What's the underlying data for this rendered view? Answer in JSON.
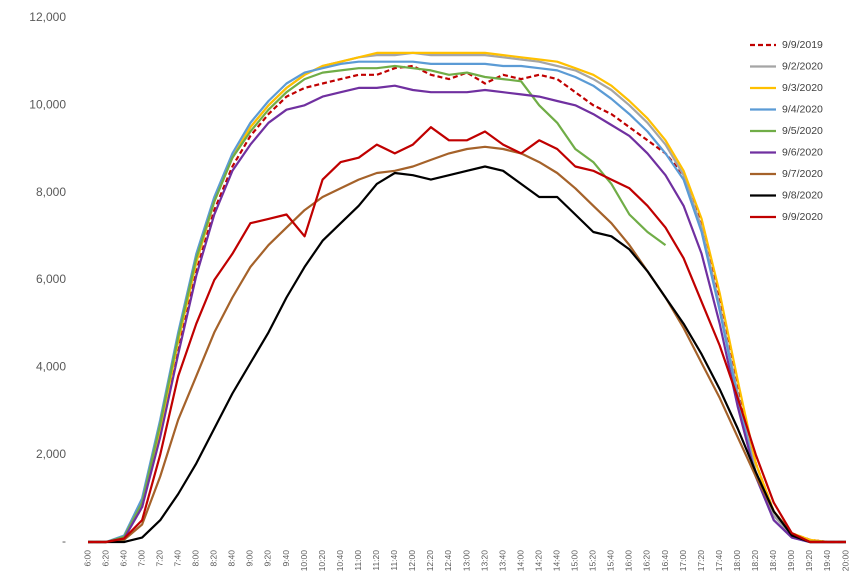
{
  "chart_data": {
    "type": "line",
    "categories": [
      "6:00",
      "6:20",
      "6:40",
      "7:00",
      "7:20",
      "7:40",
      "8:00",
      "8:20",
      "8:40",
      "9:00",
      "9:20",
      "9:40",
      "10:00",
      "10:20",
      "10:40",
      "11:00",
      "11:20",
      "11:40",
      "12:00",
      "12:20",
      "12:40",
      "13:00",
      "13:20",
      "13:40",
      "14:00",
      "14:20",
      "14:40",
      "15:00",
      "15:20",
      "15:40",
      "16:00",
      "16:20",
      "16:40",
      "17:00",
      "17:20",
      "17:40",
      "18:00",
      "18:20",
      "18:40",
      "19:00",
      "19:20",
      "19:40",
      "20:00"
    ],
    "ylim": [
      0,
      12000
    ],
    "yticks": [
      {
        "value": 0,
        "label": "-"
      },
      {
        "value": 2000,
        "label": "2,000"
      },
      {
        "value": 4000,
        "label": "4,000"
      },
      {
        "value": 6000,
        "label": "6,000"
      },
      {
        "value": 8000,
        "label": "8,000"
      },
      {
        "value": 10000,
        "label": "10,000"
      },
      {
        "value": 12000,
        "label": "12,000"
      }
    ],
    "grid": false,
    "legend": "top-right",
    "series": [
      {
        "name": "9/9/2019",
        "color": "#c00000",
        "dashed": true,
        "values": [
          0,
          0,
          100,
          800,
          2500,
          4400,
          6200,
          7600,
          8600,
          9300,
          9800,
          10200,
          10400,
          10500,
          10600,
          10700,
          10700,
          10850,
          10900,
          10700,
          10600,
          10750,
          10500,
          10700,
          10600,
          10700,
          10600,
          10300,
          10000,
          9800,
          9500,
          9200,
          8900,
          8400,
          7300,
          5600,
          3600,
          1800,
          700,
          200,
          50,
          0,
          0
        ]
      },
      {
        "name": "9/2/2020",
        "color": "#a5a5a5",
        "values": [
          0,
          0,
          100,
          900,
          2600,
          4600,
          6400,
          7800,
          8800,
          9500,
          10000,
          10400,
          10700,
          10900,
          11000,
          11100,
          11150,
          11150,
          11200,
          11150,
          11150,
          11150,
          11150,
          11100,
          11050,
          11000,
          10900,
          10800,
          10600,
          10350,
          10000,
          9600,
          9100,
          8400,
          7200,
          5400,
          3400,
          1600,
          600,
          150,
          0,
          0,
          0
        ]
      },
      {
        "name": "9/3/2020",
        "color": "#ffc000",
        "values": [
          0,
          0,
          100,
          900,
          2600,
          4600,
          6400,
          7800,
          8800,
          9500,
          10000,
          10400,
          10700,
          10900,
          11000,
          11100,
          11200,
          11200,
          11200,
          11200,
          11200,
          11200,
          11200,
          11150,
          11100,
          11050,
          11000,
          10850,
          10700,
          10450,
          10100,
          9700,
          9200,
          8500,
          7400,
          5700,
          3700,
          1800,
          700,
          200,
          50,
          0,
          0
        ]
      },
      {
        "name": "9/4/2020",
        "color": "#5b9bd5",
        "values": [
          0,
          0,
          150,
          1000,
          2800,
          4800,
          6600,
          7900,
          8900,
          9600,
          10100,
          10500,
          10750,
          10850,
          10950,
          11000,
          11000,
          11000,
          11000,
          10950,
          10950,
          10950,
          10950,
          10900,
          10900,
          10850,
          10800,
          10650,
          10450,
          10150,
          9800,
          9400,
          8900,
          8300,
          7100,
          5300,
          3300,
          1500,
          500,
          100,
          0,
          0,
          0
        ]
      },
      {
        "name": "9/5/2020",
        "color": "#70ad47",
        "values": [
          0,
          0,
          120,
          900,
          2700,
          4700,
          6500,
          7800,
          8800,
          9400,
          9900,
          10300,
          10600,
          10750,
          10800,
          10850,
          10850,
          10900,
          10850,
          10800,
          10700,
          10750,
          10650,
          10600,
          10550,
          10000,
          9600,
          9000,
          8700,
          8200,
          7500,
          7100,
          6800,
          null,
          null,
          null,
          null,
          null,
          null,
          null,
          null,
          null,
          null
        ]
      },
      {
        "name": "9/6/2020",
        "color": "#7030a0",
        "values": [
          0,
          0,
          80,
          800,
          2400,
          4300,
          6100,
          7500,
          8500,
          9100,
          9600,
          9900,
          10000,
          10200,
          10300,
          10400,
          10400,
          10450,
          10350,
          10300,
          10300,
          10300,
          10350,
          10300,
          10250,
          10200,
          10100,
          10000,
          9800,
          9550,
          9300,
          8900,
          8400,
          7700,
          6600,
          5000,
          3100,
          1500,
          500,
          100,
          0,
          0,
          0
        ]
      },
      {
        "name": "9/7/2020",
        "color": "#a5622a",
        "values": [
          0,
          0,
          50,
          400,
          1500,
          2800,
          3800,
          4800,
          5600,
          6300,
          6800,
          7200,
          7600,
          7900,
          8100,
          8300,
          8450,
          8500,
          8600,
          8750,
          8900,
          9000,
          9050,
          9000,
          8900,
          8700,
          8450,
          8100,
          7700,
          7300,
          6800,
          6200,
          5600,
          4900,
          4100,
          3300,
          2400,
          1500,
          700,
          200,
          0,
          0,
          0
        ]
      },
      {
        "name": "9/8/2020",
        "color": "#000000",
        "values": [
          0,
          0,
          0,
          100,
          500,
          1100,
          1800,
          2600,
          3400,
          4100,
          4800,
          5600,
          6300,
          6900,
          7300,
          7700,
          8200,
          8450,
          8400,
          8300,
          8400,
          8500,
          8600,
          8500,
          8200,
          7900,
          7900,
          7500,
          7100,
          7000,
          6700,
          6200,
          5600,
          5000,
          4300,
          3500,
          2600,
          1600,
          700,
          150,
          0,
          0,
          0
        ]
      },
      {
        "name": "9/9/2020",
        "color": "#c00000",
        "values": [
          0,
          0,
          80,
          500,
          2000,
          3800,
          5000,
          6000,
          6600,
          7300,
          7400,
          7500,
          7000,
          8300,
          8700,
          8800,
          9100,
          8900,
          9100,
          9500,
          9200,
          9200,
          9400,
          9100,
          8900,
          9200,
          9000,
          8600,
          8500,
          8300,
          8100,
          7700,
          7200,
          6500,
          5500,
          4500,
          3300,
          2000,
          900,
          200,
          0,
          0,
          0
        ]
      }
    ]
  }
}
